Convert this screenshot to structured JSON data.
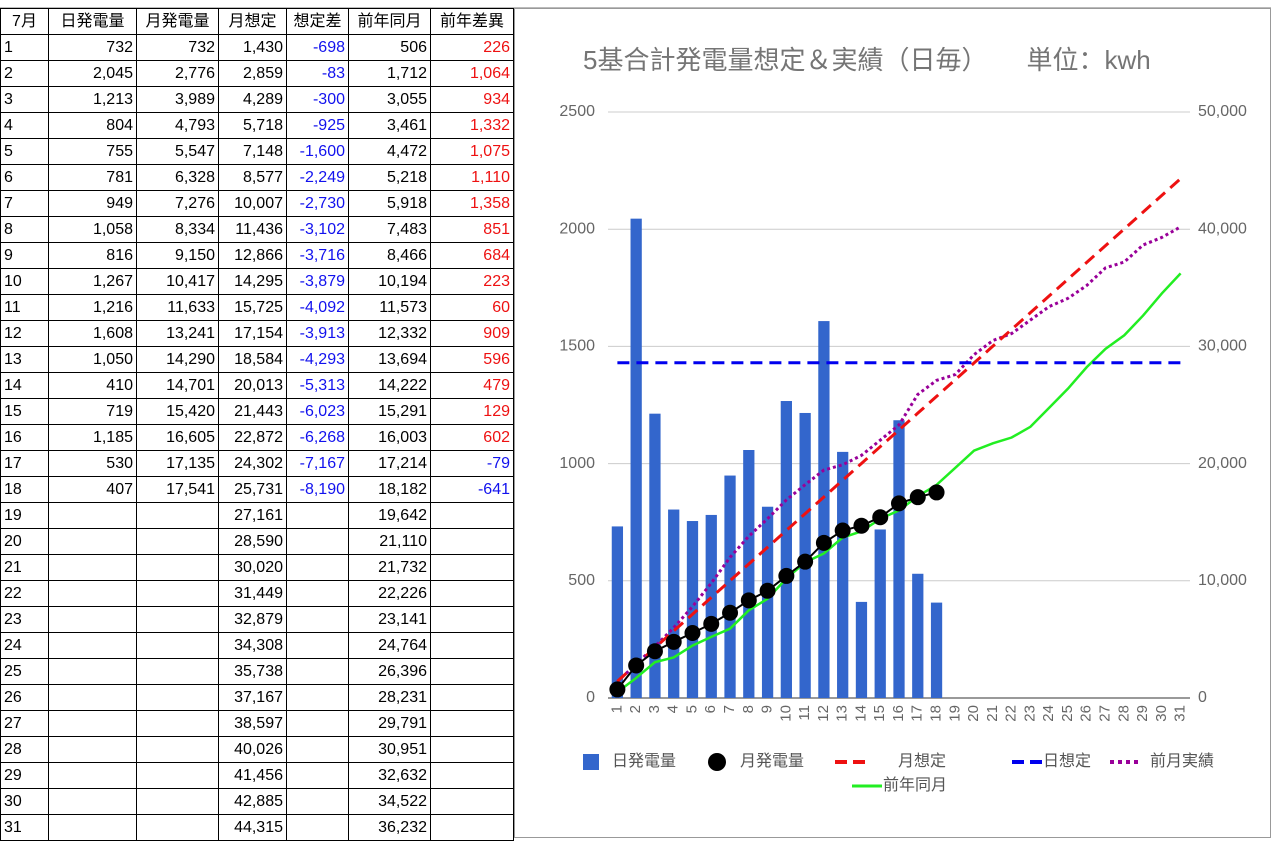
{
  "table": {
    "header": [
      "7月",
      "日発電量",
      "月発電量",
      "月想定",
      "想定差",
      "前年同月",
      "前年差異"
    ],
    "rows": [
      [
        "1",
        "732",
        "732",
        "1,430",
        "-698",
        "506",
        "226"
      ],
      [
        "2",
        "2,045",
        "2,776",
        "2,859",
        "-83",
        "1,712",
        "1,064"
      ],
      [
        "3",
        "1,213",
        "3,989",
        "4,289",
        "-300",
        "3,055",
        "934"
      ],
      [
        "4",
        "804",
        "4,793",
        "5,718",
        "-925",
        "3,461",
        "1,332"
      ],
      [
        "5",
        "755",
        "5,547",
        "7,148",
        "-1,600",
        "4,472",
        "1,075"
      ],
      [
        "6",
        "781",
        "6,328",
        "8,577",
        "-2,249",
        "5,218",
        "1,110"
      ],
      [
        "7",
        "949",
        "7,276",
        "10,007",
        "-2,730",
        "5,918",
        "1,358"
      ],
      [
        "8",
        "1,058",
        "8,334",
        "11,436",
        "-3,102",
        "7,483",
        "851"
      ],
      [
        "9",
        "816",
        "9,150",
        "12,866",
        "-3,716",
        "8,466",
        "684"
      ],
      [
        "10",
        "1,267",
        "10,417",
        "14,295",
        "-3,879",
        "10,194",
        "223"
      ],
      [
        "11",
        "1,216",
        "11,633",
        "15,725",
        "-4,092",
        "11,573",
        "60"
      ],
      [
        "12",
        "1,608",
        "13,241",
        "17,154",
        "-3,913",
        "12,332",
        "909"
      ],
      [
        "13",
        "1,050",
        "14,290",
        "18,584",
        "-4,293",
        "13,694",
        "596"
      ],
      [
        "14",
        "410",
        "14,701",
        "20,013",
        "-5,313",
        "14,222",
        "479"
      ],
      [
        "15",
        "719",
        "15,420",
        "21,443",
        "-6,023",
        "15,291",
        "129"
      ],
      [
        "16",
        "1,185",
        "16,605",
        "22,872",
        "-6,268",
        "16,003",
        "602"
      ],
      [
        "17",
        "530",
        "17,135",
        "24,302",
        "-7,167",
        "17,214",
        "-79"
      ],
      [
        "18",
        "407",
        "17,541",
        "25,731",
        "-8,190",
        "18,182",
        "-641"
      ],
      [
        "19",
        null,
        null,
        "27,161",
        null,
        "19,642",
        null
      ],
      [
        "20",
        null,
        null,
        "28,590",
        null,
        "21,110",
        null
      ],
      [
        "21",
        null,
        null,
        "30,020",
        null,
        "21,732",
        null
      ],
      [
        "22",
        null,
        null,
        "31,449",
        null,
        "22,226",
        null
      ],
      [
        "23",
        null,
        null,
        "32,879",
        null,
        "23,141",
        null
      ],
      [
        "24",
        null,
        null,
        "34,308",
        null,
        "24,764",
        null
      ],
      [
        "25",
        null,
        null,
        "35,738",
        null,
        "26,396",
        null
      ],
      [
        "26",
        null,
        null,
        "37,167",
        null,
        "28,231",
        null
      ],
      [
        "27",
        null,
        null,
        "38,597",
        null,
        "29,791",
        null
      ],
      [
        "28",
        null,
        null,
        "40,026",
        null,
        "30,951",
        null
      ],
      [
        "29",
        null,
        null,
        "41,456",
        null,
        "32,632",
        null
      ],
      [
        "30",
        null,
        null,
        "42,885",
        null,
        "34,522",
        null
      ],
      [
        "31",
        null,
        null,
        "44,315",
        null,
        "36,232",
        null
      ]
    ]
  },
  "chart_data": {
    "type": "combo",
    "title": "5基合計発電量想定＆実績（日毎）　　単位：kwh",
    "categories": [
      "1",
      "2",
      "3",
      "4",
      "5",
      "6",
      "7",
      "8",
      "9",
      "10",
      "11",
      "12",
      "13",
      "14",
      "15",
      "16",
      "17",
      "18",
      "19",
      "20",
      "21",
      "22",
      "23",
      "24",
      "25",
      "26",
      "27",
      "28",
      "29",
      "30",
      "31"
    ],
    "ylim": [
      0,
      2500
    ],
    "yticks": [
      0,
      500,
      1000,
      1500,
      2000,
      2500
    ],
    "y2lim": [
      0,
      50000
    ],
    "y2ticks": [
      0,
      {
        "value": 10000,
        "label": "10,000"
      },
      {
        "value": 20000,
        "label": "20,000"
      },
      {
        "value": 30000,
        "label": "30,000"
      },
      {
        "value": 40000,
        "label": "40,000"
      },
      {
        "value": 50000,
        "label": "50,000"
      }
    ],
    "grid": true,
    "series": [
      {
        "name": "日発電量",
        "type": "bar",
        "color": "#3366cc",
        "values": [
          732,
          2045,
          1213,
          804,
          755,
          781,
          949,
          1058,
          816,
          1267,
          1216,
          1608,
          1050,
          410,
          719,
          1185,
          530,
          407,
          null,
          null,
          null,
          null,
          null,
          null,
          null,
          null,
          null,
          null,
          null,
          null,
          null
        ]
      },
      {
        "name": "月発電量",
        "type": "dot",
        "color": "#000000",
        "axis": "y2",
        "values": [
          732,
          2776,
          3989,
          4793,
          5547,
          6328,
          7276,
          8334,
          9150,
          10417,
          11633,
          13241,
          14290,
          14701,
          15420,
          16605,
          17135,
          17541,
          null,
          null,
          null,
          null,
          null,
          null,
          null,
          null,
          null,
          null,
          null,
          null,
          null
        ]
      },
      {
        "name": "月想定",
        "type": "dash",
        "color": "#ee1111",
        "axis": "y2",
        "values": [
          1430,
          2859,
          4289,
          5718,
          7148,
          8577,
          10007,
          11436,
          12866,
          14295,
          15725,
          17154,
          18584,
          20013,
          21443,
          22872,
          24302,
          25731,
          27161,
          28590,
          30020,
          31449,
          32879,
          34308,
          35738,
          37167,
          38597,
          40026,
          41456,
          42885,
          44315
        ]
      },
      {
        "name": "日想定",
        "type": "dash",
        "color": "#0000ee",
        "values": [
          1430,
          1430,
          1430,
          1430,
          1430,
          1430,
          1430,
          1430,
          1430,
          1430,
          1430,
          1430,
          1430,
          1430,
          1430,
          1430,
          1430,
          1430,
          1430,
          1430,
          1430,
          1430,
          1430,
          1430,
          1430,
          1430,
          1430,
          1430,
          1430,
          1430,
          1430
        ]
      },
      {
        "name": "前月実績",
        "type": "dotline",
        "color": "#990099",
        "axis": "y2",
        "values": [
          1400,
          2900,
          4400,
          6000,
          7800,
          9800,
          12000,
          13800,
          15300,
          16900,
          18200,
          19450,
          19900,
          20700,
          22000,
          23300,
          25900,
          27100,
          27600,
          29300,
          30500,
          31100,
          32250,
          33400,
          34100,
          35200,
          36700,
          37200,
          38650,
          39300,
          40200
        ]
      },
      {
        "name": "前年同月",
        "type": "line",
        "color": "#22ee22",
        "axis": "y2",
        "values": [
          506,
          1712,
          3055,
          3461,
          4472,
          5218,
          5918,
          7483,
          8466,
          10194,
          11573,
          12332,
          13694,
          14222,
          15291,
          16003,
          17214,
          18182,
          19642,
          21110,
          21732,
          22226,
          23141,
          24764,
          26396,
          28231,
          29791,
          30951,
          32632,
          34522,
          36232
        ]
      }
    ]
  }
}
